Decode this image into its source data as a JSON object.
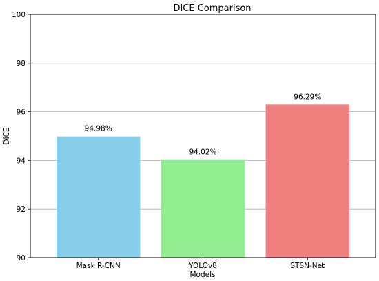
{
  "chart_data": {
    "type": "bar",
    "title": "DICE Comparison",
    "xlabel": "Models",
    "ylabel": "DICE",
    "categories": [
      "Mask R-CNN",
      "YOLOv8",
      "STSN-Net"
    ],
    "values": [
      94.98,
      94.02,
      96.29
    ],
    "value_labels": [
      "94.98%",
      "94.02%",
      "96.29%"
    ],
    "bar_colors": [
      "#87ceeb",
      "#90ee90",
      "#f08080"
    ],
    "ylim": [
      90,
      100
    ],
    "yticks": [
      90,
      92,
      94,
      96,
      98,
      100
    ],
    "ytick_labels": [
      "90",
      "92",
      "94",
      "96",
      "98",
      "100"
    ],
    "grid": "y-axis",
    "legend": "none"
  }
}
